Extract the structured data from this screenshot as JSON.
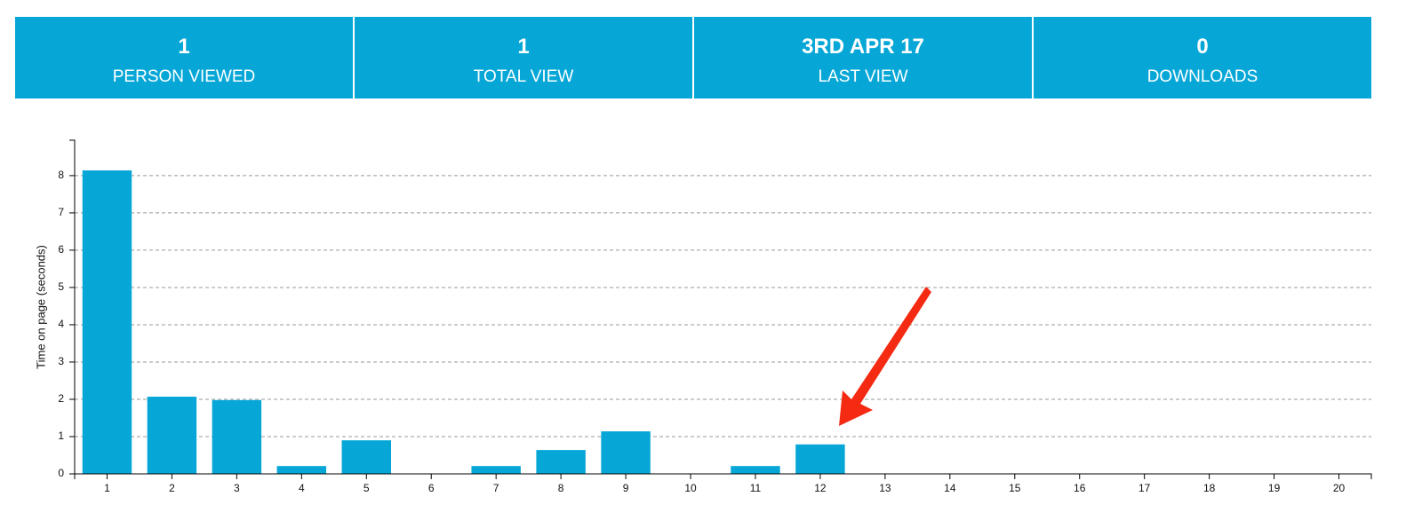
{
  "stats": [
    {
      "value": 1,
      "label": "PERSON VIEWED"
    },
    {
      "value": 1,
      "label": "TOTAL VIEW"
    },
    {
      "value": "3RD APR 17",
      "label": "LAST VIEW"
    },
    {
      "value": 0,
      "label": "DOWNLOADS"
    }
  ],
  "chart_data": {
    "type": "bar",
    "y_label": "Time on page (seconds)",
    "categories": [
      "1",
      "2",
      "3",
      "4",
      "5",
      "6",
      "7",
      "8",
      "9",
      "10",
      "11",
      "12",
      "13",
      "14",
      "15",
      "16",
      "17",
      "18",
      "19",
      "20"
    ],
    "values": [
      8.14,
      2.07,
      1.98,
      0.21,
      0.9,
      0,
      0.21,
      0.64,
      1.14,
      0,
      0.21,
      0.79,
      0,
      0,
      0,
      0,
      0,
      0,
      0,
      0
    ],
    "color": "#06a7d7",
    "ylim": [
      0,
      8.95
    ],
    "yticks": [
      0,
      1,
      2,
      3,
      4,
      5,
      6,
      7,
      8
    ],
    "grid": true
  }
}
